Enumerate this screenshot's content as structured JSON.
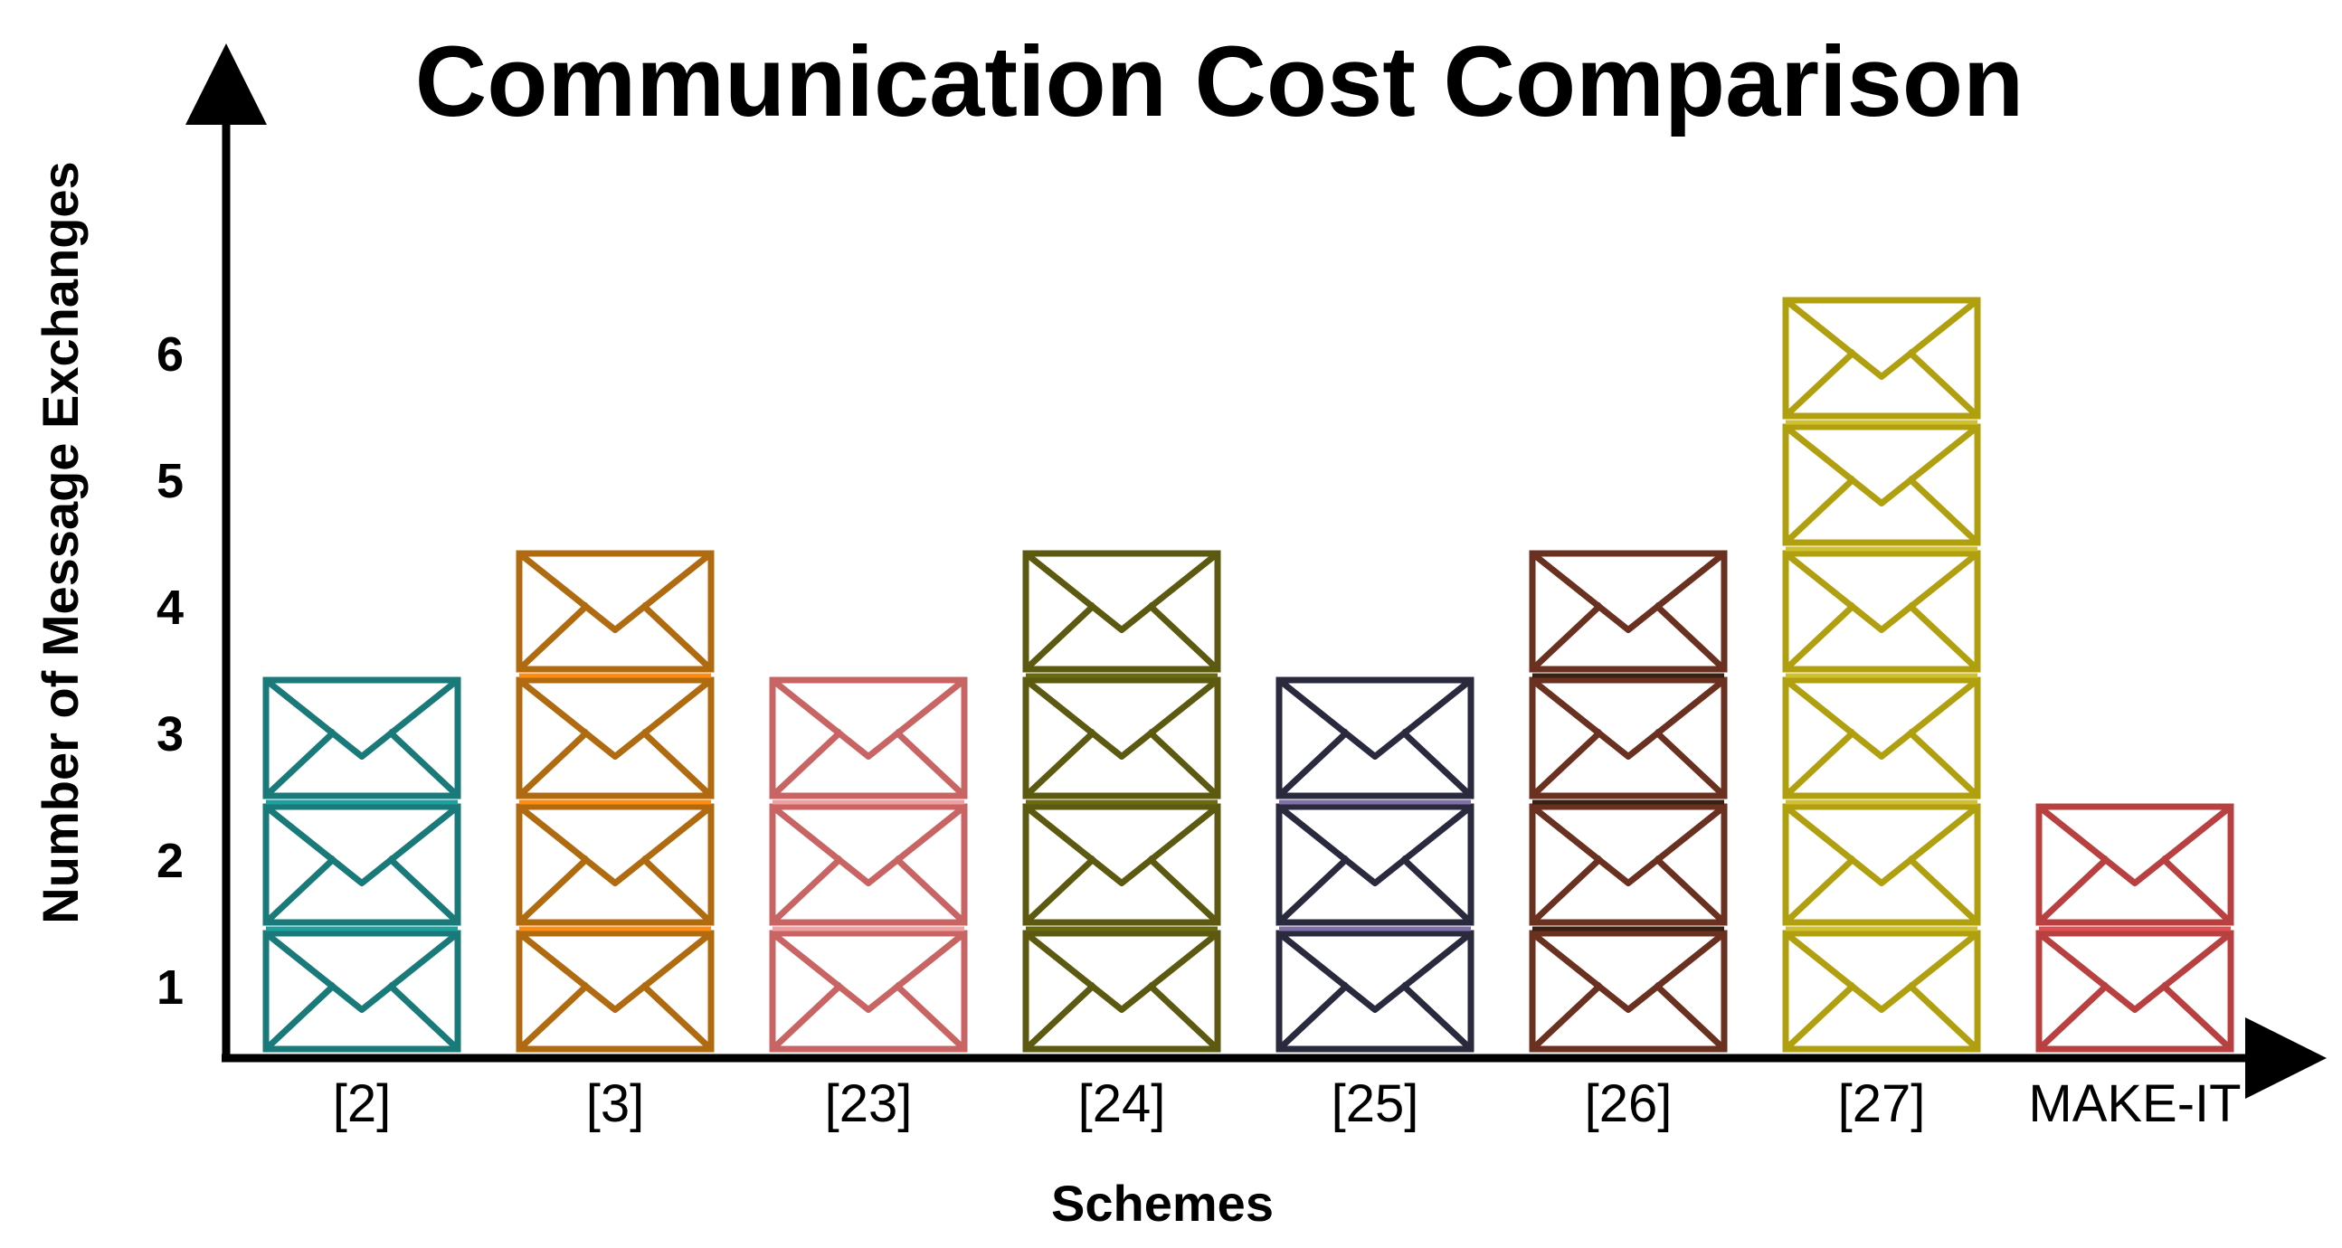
{
  "chart_data": {
    "type": "bar",
    "title": "Communication Cost Comparison",
    "xlabel": "Schemes",
    "ylabel": "Number of Message Exchanges",
    "yticks": [
      1,
      2,
      3,
      4,
      5,
      6
    ],
    "ylim": [
      0,
      6
    ],
    "categories": [
      "[2]",
      "[3]",
      "[23]",
      "[24]",
      "[25]",
      "[26]",
      "[27]",
      "MAKE-IT"
    ],
    "values": [
      3,
      4,
      3,
      4,
      3,
      4,
      6,
      2
    ],
    "colors": [
      "#1a7a7a",
      "#b06a10",
      "#c86464",
      "#5c5a10",
      "#2a2a3e",
      "#6a3020",
      "#b0a010",
      "#b84040"
    ],
    "accent_colors": [
      "#1fa0a0",
      "#ff8c10",
      "#f0a0a0",
      "#6a6a10",
      "#8070a8",
      "#3a2010",
      "#d0c030",
      "#e05050"
    ],
    "mark_icon": "envelope-icon"
  }
}
